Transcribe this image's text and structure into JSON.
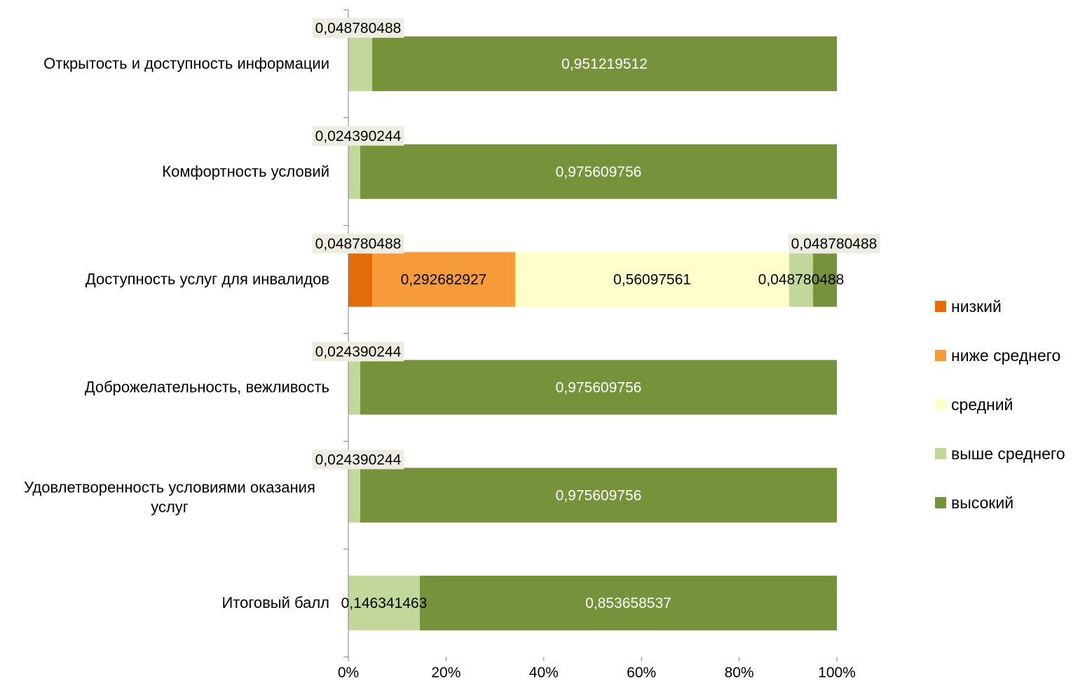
{
  "chart_data": {
    "type": "bar",
    "orientation": "horizontal",
    "stacked": "percent",
    "categories": [
      "Открытость и доступность информации",
      "Комфортность условий",
      "Доступность услуг для инвалидов",
      "Доброжелательность, вежливость",
      "Удовлетворенность условиями оказания услуг",
      "Итоговый балл"
    ],
    "series": [
      {
        "name": "низкий",
        "color": "#e36c0a",
        "values": [
          0,
          0,
          0.048780488,
          0,
          0,
          0
        ]
      },
      {
        "name": "ниже среднего",
        "color": "#f79a3a",
        "values": [
          0,
          0,
          0.292682927,
          0,
          0,
          0
        ]
      },
      {
        "name": "средний",
        "color": "#ffffcc",
        "values": [
          0,
          0,
          0.56097561,
          0,
          0,
          0
        ]
      },
      {
        "name": "выше среднего",
        "color": "#c4d79b",
        "values": [
          0.048780488,
          0.024390244,
          0.048780488,
          0.024390244,
          0.024390244,
          0.146341463
        ]
      },
      {
        "name": "высокий",
        "color": "#76933c",
        "values": [
          0.951219512,
          0.975609756,
          0.048780488,
          0.975609756,
          0.975609756,
          0.853658537
        ]
      }
    ],
    "data_labels": [
      [
        "",
        "",
        "",
        "0,048780488",
        "0,951219512"
      ],
      [
        "",
        "",
        "",
        "0,024390244",
        "0,975609756"
      ],
      [
        "0,048780488",
        "0,292682927",
        "0,56097561",
        "0,048780488",
        "0,048780488"
      ],
      [
        "",
        "",
        "",
        "0,024390244",
        "0,975609756"
      ],
      [
        "",
        "",
        "",
        "0,024390244",
        "0,975609756"
      ],
      [
        "",
        "",
        "",
        "0,146341463",
        "0,853658537"
      ]
    ],
    "xlim": [
      0,
      1
    ],
    "x_ticks": [
      "0%",
      "20%",
      "40%",
      "60%",
      "80%",
      "100%"
    ],
    "grid": false,
    "legend_position": "right"
  }
}
